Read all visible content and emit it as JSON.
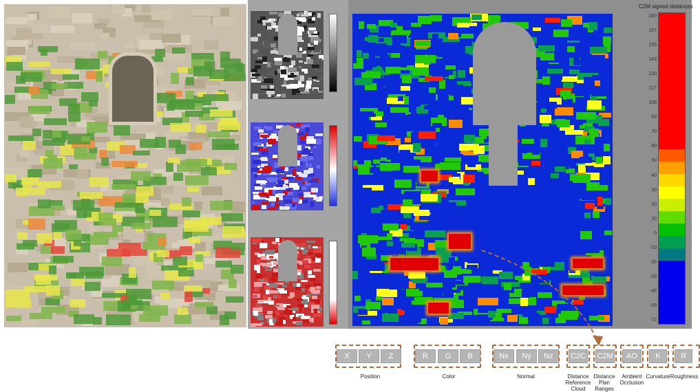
{
  "colorbar": {
    "title": "C2M signed distances",
    "ticks": [
      "180",
      "167",
      "155",
      "143",
      "130",
      "117",
      "105",
      "93",
      "70",
      "60",
      "50",
      "40",
      "30",
      "20",
      "10",
      "0",
      "-10",
      "-20",
      "-33",
      "-46",
      "-59",
      "-72"
    ]
  },
  "features": {
    "groups": [
      {
        "name": "position",
        "label": "Position",
        "items": [
          "X",
          "Y",
          "Z"
        ]
      },
      {
        "name": "color",
        "label": "Color",
        "items": [
          "R",
          "G",
          "B"
        ]
      },
      {
        "name": "normal",
        "label": "Normal",
        "items": [
          "Nx",
          "Ny",
          "Nz"
        ]
      },
      {
        "name": "c2c",
        "label": "Distance Reference Cloud",
        "items": [
          "C2C"
        ]
      },
      {
        "name": "c2m",
        "label": "Distance Plan Ranges",
        "items": [
          "C2M"
        ]
      },
      {
        "name": "ao",
        "label": "Ambient Occlusion",
        "items": [
          "AO"
        ]
      },
      {
        "name": "curvature",
        "label": "Curvature",
        "items": [
          "K"
        ]
      },
      {
        "name": "roughness",
        "label": "Roughness",
        "items": [
          "R"
        ]
      }
    ]
  },
  "colors": {
    "high": "#ff0000",
    "orange": "#ff8c00",
    "yellow": "#ffff00",
    "green": "#00c000",
    "teal": "#007a60",
    "blue": "#0000ee",
    "arrow": "#b26a3a"
  }
}
